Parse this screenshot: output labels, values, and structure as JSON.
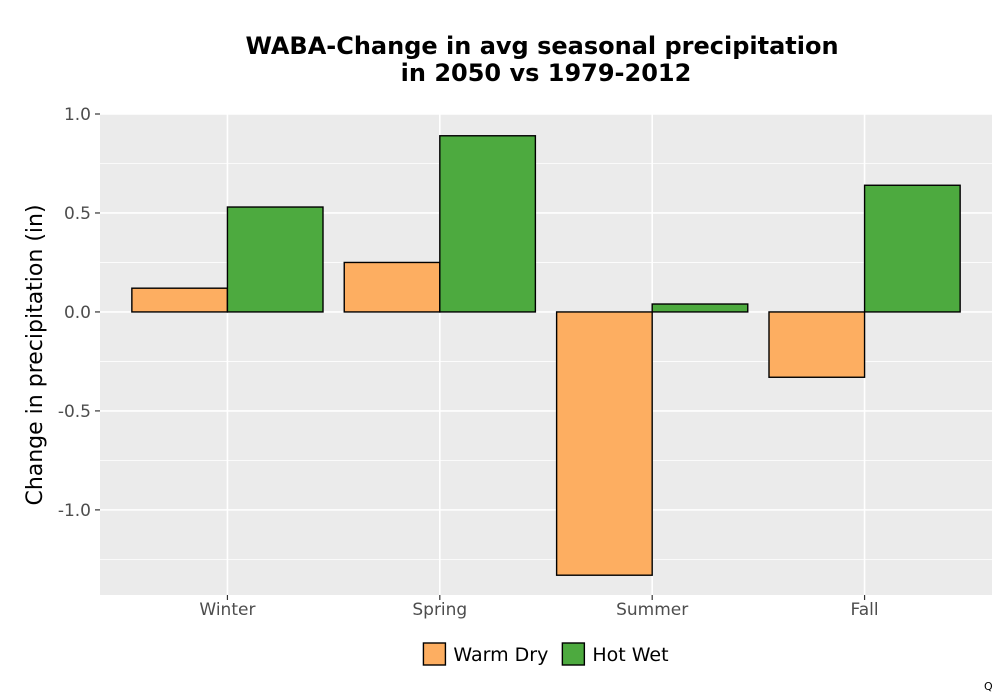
{
  "chart_data": {
    "type": "bar",
    "title_lines": [
      "WABA-Change in avg seasonal precipitation",
      "in 2050 vs 1979-2012"
    ],
    "xlabel": "",
    "ylabel": "Change in precipitation (in)",
    "categories": [
      "Winter",
      "Spring",
      "Summer",
      "Fall"
    ],
    "series": [
      {
        "name": "Warm Dry",
        "color": "#fdae61",
        "values": [
          0.12,
          0.25,
          -1.33,
          -0.33
        ]
      },
      {
        "name": "Hot Wet",
        "color": "#4daa3f",
        "values": [
          0.53,
          0.89,
          0.04,
          0.64
        ]
      }
    ],
    "ylim": [
      -1.43,
      1.0
    ],
    "yticks": [
      -1.0,
      -0.5,
      0.0,
      0.5,
      1.0
    ],
    "ytick_labels": [
      "-1.0",
      "-0.5",
      "0.0",
      "0.5",
      "1.0"
    ],
    "grid": true,
    "panel_background": "#ebebeb",
    "legend_position": "bottom"
  },
  "corner_mark": "Q"
}
